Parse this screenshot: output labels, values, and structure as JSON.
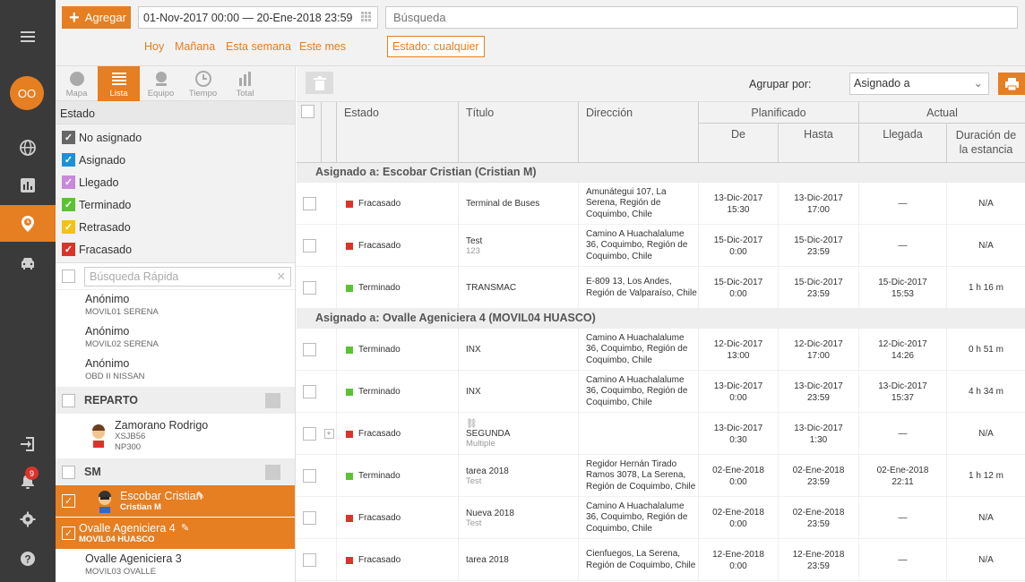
{
  "rail": {
    "avatar": "OO",
    "notifications": "9"
  },
  "topbar": {
    "add_label": "Agregar",
    "date_range": "01-Nov-2017 00:00 — 20-Ene-2018 23:59",
    "search_placeholder": "Búsqueda",
    "quick_links": [
      "Hoy",
      "Mañana",
      "Esta semana",
      "Este mes"
    ],
    "status_filter": "Estado: cualquier"
  },
  "view_tabs": [
    "Mapa",
    "Lista",
    "Equipo",
    "Tiempo",
    "Total"
  ],
  "estado": {
    "title": "Estado",
    "items": [
      {
        "label": "No asignado",
        "color": "#666666"
      },
      {
        "label": "Asignado",
        "color": "#1e90d6"
      },
      {
        "label": "Llegado",
        "color": "#c88ad8"
      },
      {
        "label": "Terminado",
        "color": "#5bc236"
      },
      {
        "label": "Retrasado",
        "color": "#f2c21b"
      },
      {
        "label": "Fracasado",
        "color": "#d9342b"
      }
    ]
  },
  "quick_search_placeholder": "Búsqueda Rápida",
  "resources": [
    {
      "name": "Anónimo",
      "sub": "MOVIL01 SERENA"
    },
    {
      "name": "Anónimo",
      "sub": "MOVIL02 SERENA"
    },
    {
      "name": "Anónimo",
      "sub": "OBD II NISSAN"
    }
  ],
  "groups": [
    {
      "name": "REPARTO",
      "member": {
        "name": "Zamorano Rodrigo",
        "sub1": "XSJB56",
        "sub2": "NP300"
      }
    },
    {
      "name": "SM"
    }
  ],
  "selected": [
    {
      "name": "Escobar Cristian",
      "sub": "Cristian M"
    },
    {
      "name": "Ovalle Ageniciera 4",
      "sub": "MOVIL04 HUASCO"
    }
  ],
  "last_resource": {
    "name": "Ovalle Ageniciera 3",
    "sub": "MOVIL03 OVALLE"
  },
  "toolbar": {
    "group_label": "Agrupar por:",
    "group_value": "Asignado a"
  },
  "table": {
    "headers": {
      "estado": "Estado",
      "titulo": "Título",
      "direccion": "Dirección",
      "planificado": "Planificado",
      "de": "De",
      "hasta": "Hasta",
      "actual": "Actual",
      "llegada": "Llegada",
      "duracion": "Duración de la estancia"
    },
    "groups": [
      {
        "title": "Asignado a: Escobar Cristian (Cristian M)",
        "rows": [
          {
            "estado": "Fracasado",
            "color": "#d9342b",
            "titulo": "Terminal de Buses",
            "sub": "",
            "direccion": "Amunátegui 107, La Serena, Región de Coquimbo, Chile",
            "de": "13-Dic-2017 15:30",
            "hasta": "13-Dic-2017 17:00",
            "llegada": "—",
            "duracion": "N/A"
          },
          {
            "estado": "Fracasado",
            "color": "#d9342b",
            "titulo": "Test",
            "sub": "123",
            "direccion": "Camino A Huachalalume 36, Coquimbo, Región de Coquimbo, Chile",
            "de": "15-Dic-2017 0:00",
            "hasta": "15-Dic-2017 23:59",
            "llegada": "—",
            "duracion": "N/A"
          },
          {
            "estado": "Terminado",
            "color": "#5bc236",
            "titulo": "TRANSMAC",
            "sub": "",
            "direccion": "E-809 13, Los Andes, Región de Valparaíso, Chile",
            "de": "15-Dic-2017 0:00",
            "hasta": "15-Dic-2017 23:59",
            "llegada": "15-Dic-2017 15:53",
            "duracion": "1 h 16 m"
          }
        ]
      },
      {
        "title": "Asignado a: Ovalle Ageniciera 4 (MOVIL04 HUASCO)",
        "rows": [
          {
            "estado": "Terminado",
            "color": "#5bc236",
            "titulo": "INX",
            "sub": "",
            "direccion": "Camino A Huachalalume 36, Coquimbo, Región de Coquimbo, Chile",
            "de": "12-Dic-2017 13:00",
            "hasta": "12-Dic-2017 17:00",
            "llegada": "12-Dic-2017 14:26",
            "duracion": "0 h 51 m"
          },
          {
            "estado": "Terminado",
            "color": "#5bc236",
            "titulo": "INX",
            "sub": "",
            "direccion": "Camino A Huachalalume 36, Coquimbo, Región de Coquimbo, Chile",
            "de": "13-Dic-2017 0:00",
            "hasta": "13-Dic-2017 23:59",
            "llegada": "13-Dic-2017 15:37",
            "duracion": "4 h 34 m"
          },
          {
            "estado": "Fracasado",
            "color": "#d9342b",
            "titulo": "SEGUNDA",
            "sub": "Multiple",
            "direccion": "",
            "de": "13-Dic-2017 0:30",
            "hasta": "13-Dic-2017 1:30",
            "llegada": "—",
            "duracion": "N/A",
            "expand": "+"
          },
          {
            "estado": "Terminado",
            "color": "#5bc236",
            "titulo": "tarea 2018",
            "sub": "Test",
            "direccion": "Regidor Hernán Tirado Ramos 3078, La Serena, Región de Coquimbo, Chile",
            "de": "02-Ene-2018 0:00",
            "hasta": "02-Ene-2018 23:59",
            "llegada": "02-Ene-2018 22:11",
            "duracion": "1 h 12 m"
          },
          {
            "estado": "Fracasado",
            "color": "#d9342b",
            "titulo": "Nueva 2018",
            "sub": "Test",
            "direccion": "Camino A Huachalalume 36, Coquimbo, Región de Coquimbo, Chile",
            "de": "02-Ene-2018 0:00",
            "hasta": "02-Ene-2018 23:59",
            "llegada": "—",
            "duracion": "N/A"
          },
          {
            "estado": "Fracasado",
            "color": "#d9342b",
            "titulo": "tarea 2018",
            "sub": "",
            "direccion": "Cienfuegos, La Serena, Región de Coquimbo, Chile",
            "de": "12-Ene-2018 0:00",
            "hasta": "12-Ene-2018 23:59",
            "llegada": "—",
            "duracion": "N/A"
          }
        ]
      }
    ]
  }
}
